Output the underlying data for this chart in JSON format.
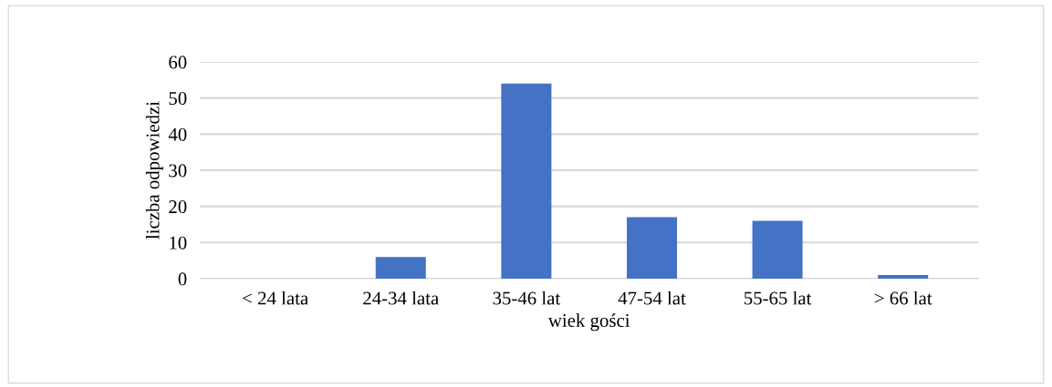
{
  "chart_data": {
    "type": "bar",
    "xlabel": "wiek gości",
    "ylabel": "liczba odpowiedzi",
    "categories": [
      "< 24 lata",
      "24-34 lata",
      "35-46 lat",
      "47-54 lat",
      "55-65 lat",
      "> 66 lat"
    ],
    "values": [
      0,
      6,
      54,
      17,
      16,
      1
    ],
    "color": "#4472c4",
    "ylim": [
      0,
      60
    ],
    "yticks": [
      0,
      10,
      20,
      30,
      40,
      50,
      60
    ],
    "grid": "y"
  }
}
